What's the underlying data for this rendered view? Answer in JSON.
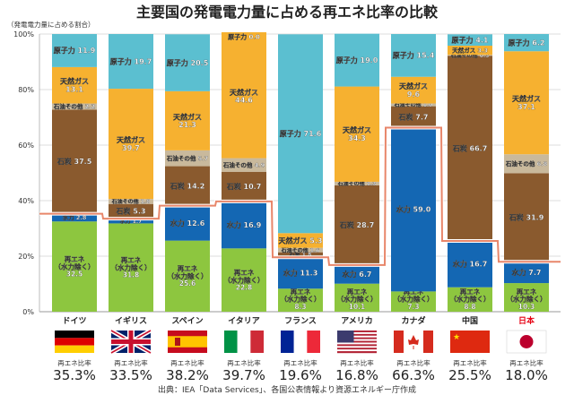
{
  "chart_data": {
    "type": "bar",
    "stacked": true,
    "title": "主要国の発電電力量に占める再エネ比率の比較",
    "ylabel": "（発電電力量に占める割合）",
    "ylim": [
      0,
      100
    ],
    "yticks": [
      "0%",
      "20%",
      "40%",
      "60%",
      "80%",
      "100%"
    ],
    "grid": true,
    "categories": [
      "ドイツ",
      "イギリス",
      "スペイン",
      "イタリア",
      "フランス",
      "アメリカ",
      "カナダ",
      "中国",
      "日本"
    ],
    "highlight_category": "日本",
    "series": [
      {
        "name": "再エネ（水力除く）",
        "short": "再エネ",
        "color": "#8dc63f",
        "values": [
          32.5,
          31.8,
          25.6,
          22.8,
          8.3,
          10.1,
          7.3,
          8.8,
          10.3
        ]
      },
      {
        "name": "水力",
        "color": "#1467b3",
        "values": [
          2.8,
          1.7,
          12.6,
          16.9,
          11.3,
          6.7,
          59.0,
          16.7,
          7.7
        ]
      },
      {
        "name": "石炭",
        "color": "#8a5a2e",
        "values": [
          37.5,
          5.3,
          14.2,
          10.7,
          1.8,
          28.7,
          7.7,
          66.7,
          31.9
        ]
      },
      {
        "name": "石油その他",
        "color": "#c9b99c",
        "values": [
          2.2,
          1.8,
          5.7,
          4.9,
          1.6,
          1.3,
          1.0,
          0.3,
          6.8
        ]
      },
      {
        "name": "天然ガス",
        "color": "#f6b130",
        "values": [
          13.1,
          39.7,
          21.3,
          44.6,
          5.3,
          34.3,
          9.6,
          3.3,
          37.1
        ]
      },
      {
        "name": "原子力",
        "color": "#5bbfd0",
        "values": [
          11.9,
          19.7,
          20.5,
          0.0,
          71.6,
          19.0,
          15.4,
          4.1,
          6.2
        ]
      }
    ],
    "renewable_ratio_label": "再エネ比率",
    "renewable_ratio": [
      "35.3%",
      "33.5%",
      "38.2%",
      "39.7%",
      "19.6%",
      "16.8%",
      "66.3%",
      "25.5%",
      "18.0%"
    ],
    "renewable_ratio_values": [
      35.3,
      33.5,
      38.2,
      39.7,
      19.6,
      16.8,
      66.3,
      25.5,
      18.0
    ],
    "line_color": "#e8866a",
    "highlight_color": "#e60012",
    "flags": [
      "de",
      "gb",
      "es",
      "it",
      "fr",
      "us",
      "ca",
      "cn",
      "jp"
    ]
  },
  "source": "出典：IEA「Data Services」、各国公表情報より資源エネルギー庁作成"
}
